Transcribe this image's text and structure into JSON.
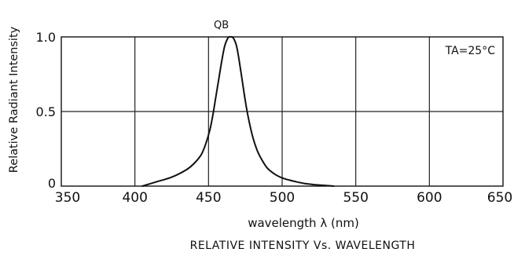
{
  "chart_data": {
    "type": "line",
    "title": "RELATIVE INTENSITY Vs. WAVELENGTH",
    "xlabel": "wavelength λ (nm)",
    "ylabel": "Relative Radiant Intensity",
    "xlim": [
      350,
      650
    ],
    "ylim": [
      0,
      1.0
    ],
    "xticks": [
      350,
      400,
      450,
      500,
      550,
      600,
      650
    ],
    "xtick_labels": [
      "350",
      "400",
      "450",
      "500",
      "550",
      "600",
      "650"
    ],
    "yticks": [
      0,
      0.5,
      1.0
    ],
    "ytick_labels": [
      "0",
      "0.5",
      "1.0"
    ],
    "grid": true,
    "annotation": "TA=25°C",
    "series": [
      {
        "name": "QB",
        "x": [
          405,
          415,
          425,
          435,
          440,
          445,
          448,
          451,
          453,
          455,
          457,
          459,
          461,
          463,
          464,
          465,
          466,
          467,
          468,
          469,
          470,
          471,
          473,
          475,
          477,
          480,
          483,
          486,
          490,
          495,
          500,
          505,
          510,
          515,
          520,
          525,
          530,
          535
        ],
        "y": [
          0.0,
          0.03,
          0.06,
          0.11,
          0.15,
          0.21,
          0.28,
          0.38,
          0.48,
          0.6,
          0.72,
          0.84,
          0.94,
          0.99,
          1.0,
          1.0,
          1.0,
          0.99,
          0.97,
          0.94,
          0.89,
          0.83,
          0.7,
          0.57,
          0.46,
          0.33,
          0.24,
          0.18,
          0.12,
          0.08,
          0.055,
          0.04,
          0.028,
          0.018,
          0.012,
          0.007,
          0.004,
          0.0
        ]
      }
    ]
  }
}
